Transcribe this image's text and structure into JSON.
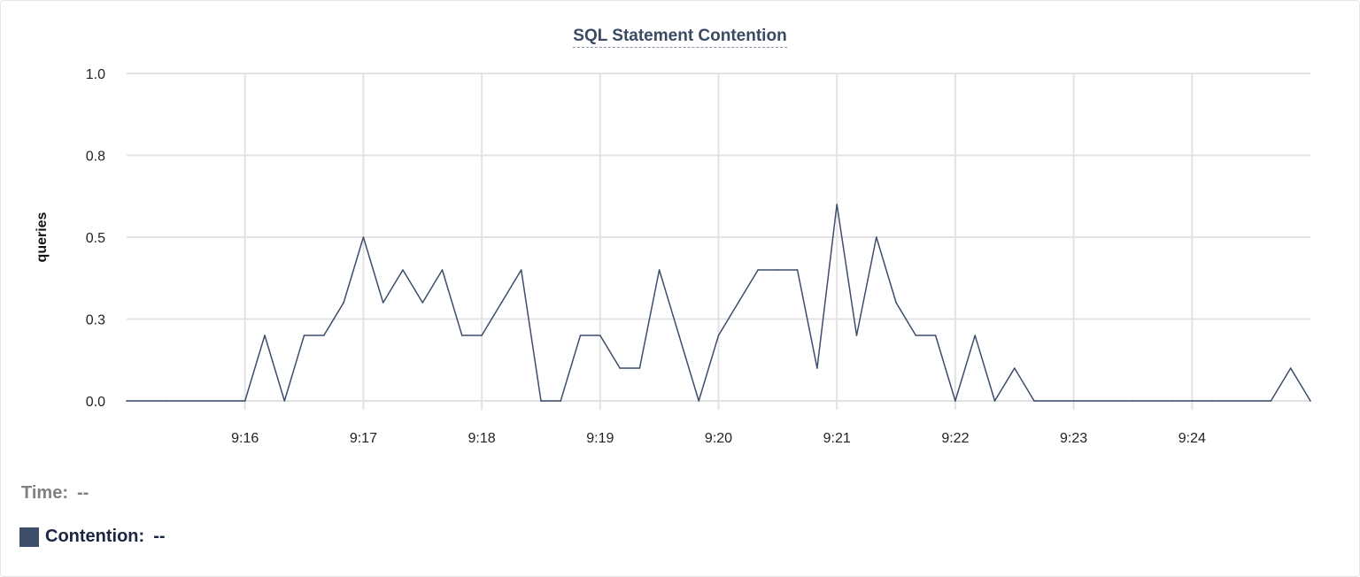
{
  "chart_data": {
    "type": "line",
    "title": "SQL Statement Contention",
    "xlabel": "",
    "ylabel": "queries",
    "ylim": [
      0,
      1.0
    ],
    "y_ticks": [
      0,
      0.25,
      0.5,
      0.75,
      1.0
    ],
    "y_tick_labels": [
      "0.0",
      "0.3",
      "0.5",
      "0.8",
      "1.0"
    ],
    "x_range": [
      "9:15:00",
      "9:25:00"
    ],
    "x_tick_labels": [
      "9:16",
      "9:17",
      "9:18",
      "9:19",
      "9:20",
      "9:21",
      "9:22",
      "9:23",
      "9:24"
    ],
    "grid": true,
    "series": [
      {
        "name": "Contention",
        "color": "#3d4d6a",
        "x": [
          "9:15:00",
          "9:15:10",
          "9:15:20",
          "9:15:30",
          "9:15:40",
          "9:15:50",
          "9:16:00",
          "9:16:10",
          "9:16:20",
          "9:16:30",
          "9:16:40",
          "9:16:50",
          "9:17:00",
          "9:17:10",
          "9:17:20",
          "9:17:30",
          "9:17:40",
          "9:17:50",
          "9:18:00",
          "9:18:10",
          "9:18:20",
          "9:18:30",
          "9:18:40",
          "9:18:50",
          "9:19:00",
          "9:19:10",
          "9:19:20",
          "9:19:30",
          "9:19:40",
          "9:19:50",
          "9:20:00",
          "9:20:10",
          "9:20:20",
          "9:20:30",
          "9:20:40",
          "9:20:50",
          "9:21:00",
          "9:21:10",
          "9:21:20",
          "9:21:30",
          "9:21:40",
          "9:21:50",
          "9:22:00",
          "9:22:10",
          "9:22:20",
          "9:22:30",
          "9:22:40",
          "9:22:50",
          "9:23:00",
          "9:23:10",
          "9:23:20",
          "9:23:30",
          "9:23:40",
          "9:23:50",
          "9:24:00",
          "9:24:10",
          "9:24:20",
          "9:24:30",
          "9:24:40",
          "9:24:50",
          "9:25:00"
        ],
        "values": [
          0,
          0,
          0,
          0,
          0,
          0,
          0,
          0.2,
          0,
          0.2,
          0.2,
          0.3,
          0.5,
          0.3,
          0.4,
          0.3,
          0.4,
          0.2,
          0.2,
          0.3,
          0.4,
          0,
          0,
          0.2,
          0.2,
          0.1,
          0.1,
          0.4,
          0.2,
          0,
          0.2,
          0.3,
          0.4,
          0.4,
          0.4,
          0.1,
          0.6,
          0.2,
          0.5,
          0.3,
          0.2,
          0.2,
          0,
          0.2,
          0,
          0.1,
          0,
          0,
          0,
          0,
          0,
          0,
          0,
          0,
          0,
          0,
          0,
          0,
          0,
          0.1,
          0
        ]
      }
    ],
    "legend": {
      "time_label": "Time:",
      "time_value": "--",
      "series_label": "Contention:",
      "series_value": "--",
      "placement": "bottom-left"
    }
  }
}
